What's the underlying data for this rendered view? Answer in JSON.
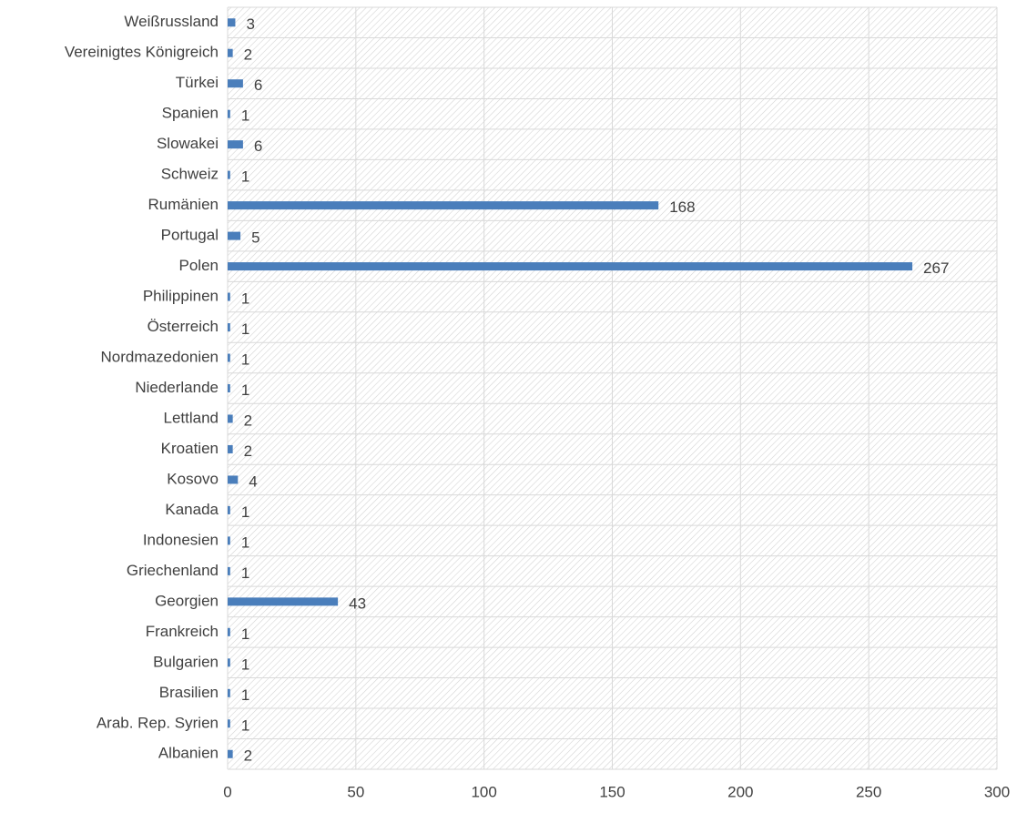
{
  "chart_data": {
    "type": "barh",
    "categories": [
      "Weißrussland",
      "Vereinigtes Königreich",
      "Türkei",
      "Spanien",
      "Slowakei",
      "Schweiz",
      "Rumänien",
      "Portugal",
      "Polen",
      "Philippinen",
      "Österreich",
      "Nordmazedonien",
      "Niederlande",
      "Lettland",
      "Kroatien",
      "Kosovo",
      "Kanada",
      "Indonesien",
      "Griechenland",
      "Georgien",
      "Frankreich",
      "Bulgarien",
      "Brasilien",
      "Arab. Rep. Syrien",
      "Albanien"
    ],
    "values": [
      3,
      2,
      6,
      1,
      6,
      1,
      168,
      5,
      267,
      1,
      1,
      1,
      1,
      2,
      2,
      4,
      1,
      1,
      1,
      43,
      1,
      1,
      1,
      1,
      2
    ],
    "color": "#4a7ebb",
    "xlim": [
      0,
      300
    ],
    "xticks": [
      0,
      50,
      100,
      150,
      200,
      250,
      300
    ],
    "grid": true
  }
}
